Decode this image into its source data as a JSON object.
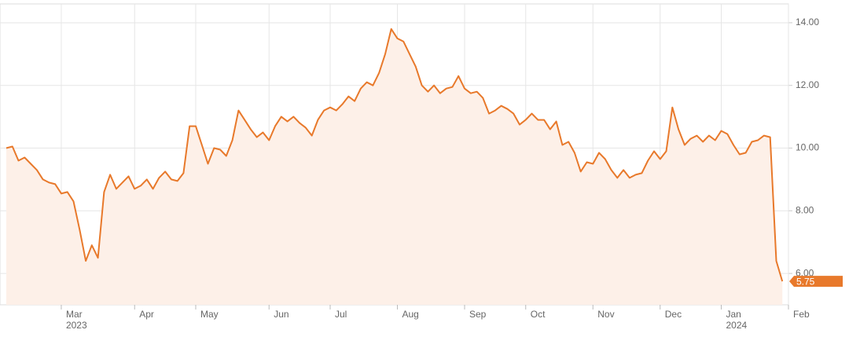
{
  "chart_data": {
    "type": "area",
    "categories": [
      null,
      null,
      null,
      null,
      null,
      null,
      null,
      null,
      null,
      "Mar 2023",
      null,
      null,
      null,
      null,
      null,
      null,
      null,
      null,
      null,
      null,
      null,
      "Apr",
      null,
      null,
      null,
      null,
      null,
      null,
      null,
      null,
      null,
      "May",
      null,
      null,
      null,
      null,
      null,
      null,
      null,
      null,
      null,
      null,
      null,
      "Jun",
      null,
      null,
      null,
      null,
      null,
      null,
      null,
      null,
      null,
      "Jul",
      null,
      null,
      null,
      null,
      null,
      null,
      null,
      null,
      null,
      null,
      "Aug",
      null,
      null,
      null,
      null,
      null,
      null,
      null,
      null,
      null,
      null,
      "Sep",
      null,
      null,
      null,
      null,
      null,
      null,
      null,
      null,
      null,
      "Oct",
      null,
      null,
      null,
      null,
      null,
      null,
      null,
      null,
      null,
      null,
      "Nov",
      null,
      null,
      null,
      null,
      null,
      null,
      null,
      null,
      null,
      null,
      "Dec",
      null,
      null,
      null,
      null,
      null,
      null,
      null,
      null,
      null,
      "Jan 2024",
      null,
      null,
      null,
      null,
      null,
      null,
      null,
      null,
      null,
      null,
      "Feb"
    ],
    "values": [
      10.0,
      10.05,
      9.6,
      9.7,
      9.5,
      9.3,
      9.0,
      8.9,
      8.85,
      8.55,
      8.6,
      8.3,
      7.4,
      6.4,
      6.9,
      6.5,
      8.6,
      9.15,
      8.7,
      8.9,
      9.1,
      8.7,
      8.8,
      9.0,
      8.7,
      9.05,
      9.25,
      9.0,
      8.95,
      9.2,
      10.7,
      10.7,
      10.1,
      9.5,
      10.0,
      9.95,
      9.75,
      10.25,
      11.2,
      10.9,
      10.6,
      10.35,
      10.5,
      10.25,
      10.7,
      11.0,
      10.85,
      11.0,
      10.8,
      10.65,
      10.4,
      10.9,
      11.2,
      11.3,
      11.2,
      11.4,
      11.65,
      11.5,
      11.9,
      12.1,
      12.0,
      12.4,
      13.0,
      13.8,
      13.5,
      13.4,
      13.0,
      12.6,
      12.0,
      11.8,
      12.0,
      11.75,
      11.9,
      11.95,
      12.3,
      11.9,
      11.75,
      11.8,
      11.6,
      11.1,
      11.2,
      11.35,
      11.25,
      11.1,
      10.75,
      10.9,
      11.1,
      10.9,
      10.9,
      10.6,
      10.85,
      10.1,
      10.2,
      9.85,
      9.25,
      9.55,
      9.5,
      9.85,
      9.65,
      9.3,
      9.05,
      9.3,
      9.05,
      9.15,
      9.2,
      9.6,
      9.9,
      9.65,
      9.9,
      11.3,
      10.6,
      10.1,
      10.3,
      10.4,
      10.2,
      10.4,
      10.25,
      10.55,
      10.45,
      10.1,
      9.8,
      9.85,
      10.2,
      10.25,
      10.4,
      10.35,
      6.4,
      5.75,
      null
    ],
    "color": "#e8792b",
    "fill_color": "#fdf0e8",
    "ylim": [
      5,
      14.6
    ],
    "yticks": [
      {
        "value": 6,
        "label": "6.00"
      },
      {
        "value": 8,
        "label": "8.00"
      },
      {
        "value": 10,
        "label": "10.00"
      },
      {
        "value": 12,
        "label": "12.00"
      },
      {
        "value": 14,
        "label": "14.00"
      }
    ],
    "grid": true
  }
}
